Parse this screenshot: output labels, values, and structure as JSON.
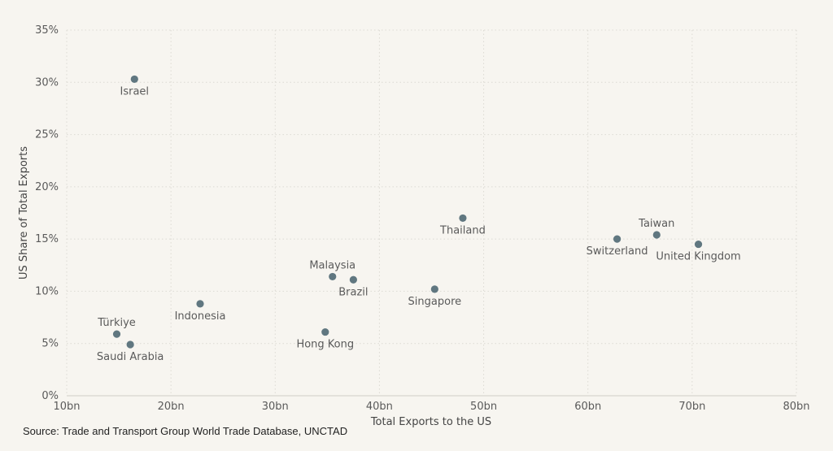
{
  "source": "Source: Trade and Transport Group World Trade Database, UNCTAD",
  "chart_data": {
    "type": "scatter",
    "xlabel": "Total Exports to the US",
    "ylabel": "US Share of Total Exports",
    "xlim": [
      10,
      80
    ],
    "ylim": [
      0,
      35
    ],
    "x_unit_suffix": "bn",
    "y_unit_suffix": "%",
    "x_ticks": [
      10,
      20,
      30,
      40,
      50,
      60,
      70,
      80
    ],
    "y_ticks": [
      0,
      5,
      10,
      15,
      20,
      25,
      30,
      35
    ],
    "grid": true,
    "point_color": "#607780",
    "points": [
      {
        "label": "Israel",
        "x": 16.5,
        "y": 30.3,
        "label_pos": "below"
      },
      {
        "label": "Thailand",
        "x": 48.0,
        "y": 17.0,
        "label_pos": "below"
      },
      {
        "label": "Taiwan",
        "x": 66.6,
        "y": 15.4,
        "label_pos": "above"
      },
      {
        "label": "Switzerland",
        "x": 62.8,
        "y": 15.0,
        "label_pos": "below"
      },
      {
        "label": "United Kingdom",
        "x": 70.6,
        "y": 14.5,
        "label_pos": "below"
      },
      {
        "label": "Malaysia",
        "x": 35.5,
        "y": 11.4,
        "label_pos": "above"
      },
      {
        "label": "Brazil",
        "x": 37.5,
        "y": 11.1,
        "label_pos": "below"
      },
      {
        "label": "Singapore",
        "x": 45.3,
        "y": 10.2,
        "label_pos": "below"
      },
      {
        "label": "Indonesia",
        "x": 22.8,
        "y": 8.8,
        "label_pos": "below"
      },
      {
        "label": "Türkiye",
        "x": 14.8,
        "y": 5.9,
        "label_pos": "above"
      },
      {
        "label": "Hong Kong",
        "x": 34.8,
        "y": 6.1,
        "label_pos": "below"
      },
      {
        "label": "Saudi Arabia",
        "x": 16.1,
        "y": 4.9,
        "label_pos": "below"
      }
    ]
  }
}
